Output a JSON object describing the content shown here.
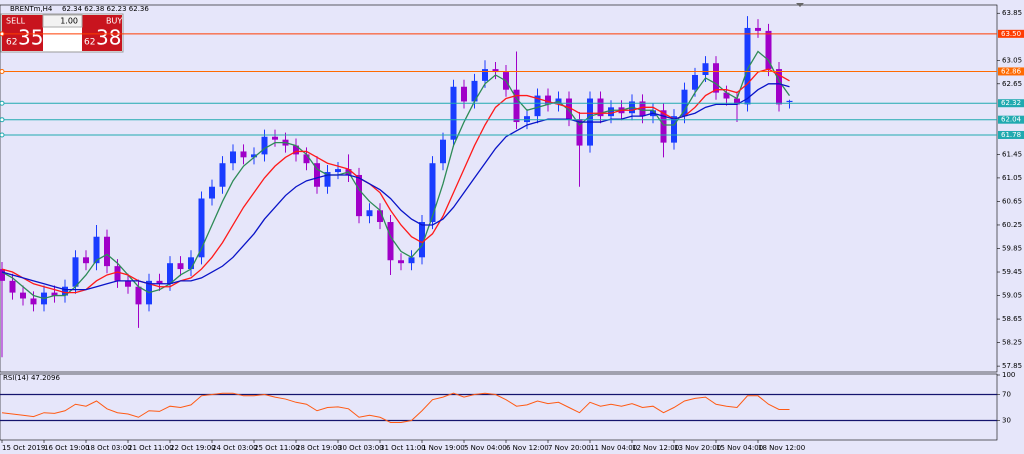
{
  "header": {
    "symbol": "BRENTm,H4",
    "ohlc": "62.34 62.38 62.23 62.36"
  },
  "trade_panel": {
    "sell": "SELL",
    "buy": "BUY",
    "lot": "1.00",
    "bid_prefix": "62",
    "bid_main": "35",
    "ask_prefix": "62",
    "ask_main": "38"
  },
  "chart_data": [
    {
      "type": "candlestick",
      "categories": [
        "15 Oct 2019",
        null,
        null,
        null,
        "16 Oct 19:00",
        null,
        null,
        null,
        "18 Oct 03:00",
        null,
        null,
        null,
        "21 Oct 11:00",
        null,
        null,
        null,
        "22 Oct 19:00",
        null,
        null,
        null,
        "24 Oct 03:00",
        null,
        null,
        null,
        "25 Oct 11:00",
        null,
        null,
        null,
        "28 Oct 19:00",
        null,
        null,
        null,
        "30 Oct 03:00",
        null,
        null,
        null,
        "31 Oct 11:00",
        null,
        null,
        null,
        "1 Nov 19:00",
        null,
        null,
        null,
        "5 Nov 04:00",
        null,
        null,
        null,
        "6 Nov 12:00",
        null,
        null,
        null,
        "7 Nov 20:00",
        null,
        null,
        null,
        "11 Nov 04:00",
        null,
        null,
        null,
        "12 Nov 12:00",
        null,
        null,
        null,
        "13 Nov 20:00",
        null,
        null,
        null,
        "15 Nov 04:00",
        null,
        null,
        null,
        "18 Nov 12:00",
        null,
        null,
        null
      ],
      "open": [
        59.5,
        59.3,
        59.1,
        59.0,
        58.9,
        59.1,
        59.05,
        59.2,
        59.7,
        59.6,
        60.05,
        59.55,
        59.3,
        59.2,
        58.9,
        59.3,
        59.25,
        59.6,
        59.5,
        59.7,
        60.7,
        60.9,
        61.3,
        61.5,
        61.4,
        61.45,
        61.75,
        61.7,
        61.6,
        61.45,
        61.3,
        60.9,
        61.15,
        61.2,
        61.1,
        60.4,
        60.5,
        60.3,
        59.65,
        59.6,
        59.7,
        60.3,
        61.3,
        61.7,
        62.6,
        62.35,
        62.7,
        62.9,
        62.85,
        62.55,
        62.0,
        62.1,
        62.45,
        62.3,
        62.4,
        62.05,
        61.6,
        62.4,
        62.1,
        62.25,
        62.15,
        62.35,
        62.1,
        62.2,
        61.65,
        62.1,
        62.55,
        62.8,
        63.0,
        62.5,
        62.4,
        62.3,
        63.6,
        63.55,
        62.9,
        62.34
      ],
      "high": [
        59.62,
        59.42,
        59.22,
        59.12,
        59.22,
        59.22,
        59.32,
        59.82,
        59.82,
        60.25,
        60.17,
        59.67,
        59.42,
        59.32,
        59.42,
        59.42,
        59.72,
        59.72,
        59.82,
        60.82,
        61.02,
        61.42,
        61.62,
        61.62,
        61.57,
        61.87,
        61.87,
        61.82,
        61.72,
        61.57,
        61.42,
        61.27,
        61.32,
        61.45,
        61.22,
        60.62,
        60.62,
        60.42,
        59.77,
        59.82,
        60.42,
        61.42,
        61.82,
        62.72,
        62.72,
        62.82,
        63.05,
        63.02,
        62.97,
        63.2,
        62.22,
        62.57,
        62.57,
        62.52,
        62.52,
        62.17,
        62.52,
        62.52,
        62.37,
        62.37,
        62.47,
        62.47,
        62.32,
        62.32,
        62.22,
        62.67,
        62.92,
        63.12,
        63.12,
        62.62,
        62.52,
        63.8,
        63.75,
        63.67,
        63.02,
        62.38
      ],
      "low": [
        58.0,
        58.98,
        58.88,
        58.78,
        58.78,
        58.93,
        58.93,
        59.08,
        59.48,
        59.48,
        59.43,
        59.18,
        59.08,
        58.5,
        58.78,
        59.13,
        59.13,
        59.38,
        59.38,
        59.58,
        60.58,
        60.78,
        61.18,
        61.28,
        61.28,
        61.33,
        61.58,
        61.48,
        61.33,
        61.18,
        60.78,
        60.78,
        61.03,
        60.98,
        60.28,
        60.28,
        60.18,
        59.4,
        59.48,
        59.48,
        59.58,
        60.18,
        61.18,
        61.58,
        62.23,
        62.23,
        62.58,
        62.73,
        62.43,
        61.88,
        61.88,
        61.98,
        62.18,
        62.18,
        61.93,
        60.9,
        61.48,
        61.98,
        61.98,
        62.03,
        62.03,
        61.98,
        61.98,
        61.4,
        61.53,
        61.98,
        62.43,
        62.68,
        62.38,
        62.28,
        62.0,
        62.18,
        63.43,
        62.78,
        62.18,
        62.23
      ],
      "close": [
        59.3,
        59.1,
        59.0,
        58.9,
        59.1,
        59.05,
        59.2,
        59.7,
        59.6,
        60.05,
        59.55,
        59.3,
        59.2,
        58.9,
        59.3,
        59.25,
        59.6,
        59.5,
        59.7,
        60.7,
        60.9,
        61.3,
        61.5,
        61.4,
        61.45,
        61.75,
        61.7,
        61.6,
        61.45,
        61.3,
        60.9,
        61.15,
        61.2,
        61.1,
        60.4,
        60.5,
        60.3,
        59.65,
        59.6,
        59.7,
        60.3,
        61.3,
        61.7,
        62.6,
        62.35,
        62.7,
        62.9,
        62.85,
        62.55,
        62.0,
        62.1,
        62.45,
        62.3,
        62.4,
        62.05,
        61.6,
        62.4,
        62.1,
        62.25,
        62.15,
        62.35,
        62.1,
        62.2,
        61.65,
        62.1,
        62.55,
        62.8,
        63.0,
        62.5,
        62.4,
        62.3,
        63.6,
        63.55,
        62.9,
        62.3,
        62.36
      ],
      "up_color": "#1a3cff",
      "down_color": "#a000c8",
      "overlays": [
        {
          "color": "#2e8b57",
          "values": [
            59.45,
            59.35,
            59.2,
            59.05,
            59.0,
            59.05,
            59.05,
            59.2,
            59.4,
            59.65,
            59.75,
            59.6,
            59.4,
            59.2,
            59.1,
            59.15,
            59.25,
            59.4,
            59.5,
            59.85,
            60.25,
            60.65,
            61.0,
            61.25,
            61.4,
            61.55,
            61.65,
            61.65,
            61.6,
            61.45,
            61.2,
            61.1,
            61.1,
            61.15,
            60.85,
            60.65,
            60.5,
            60.05,
            59.8,
            59.7,
            59.9,
            60.4,
            60.95,
            61.6,
            62.0,
            62.35,
            62.65,
            62.8,
            62.7,
            62.4,
            62.2,
            62.25,
            62.3,
            62.35,
            62.2,
            61.95,
            62.1,
            62.15,
            62.2,
            62.2,
            62.25,
            62.2,
            62.2,
            61.95,
            61.95,
            62.2,
            62.5,
            62.75,
            62.65,
            62.5,
            62.4,
            62.9,
            63.2,
            63.05,
            62.7,
            62.45
          ]
        },
        {
          "color": "#ff1a1a",
          "values": [
            59.5,
            59.45,
            59.35,
            59.25,
            59.2,
            59.15,
            59.1,
            59.1,
            59.15,
            59.3,
            59.4,
            59.45,
            59.4,
            59.3,
            59.25,
            59.2,
            59.2,
            59.3,
            59.35,
            59.5,
            59.7,
            59.95,
            60.25,
            60.55,
            60.8,
            61.05,
            61.25,
            61.4,
            61.5,
            61.5,
            61.4,
            61.3,
            61.25,
            61.2,
            61.05,
            60.95,
            60.8,
            60.5,
            60.25,
            60.05,
            59.95,
            60.1,
            60.4,
            60.8,
            61.2,
            61.6,
            61.95,
            62.25,
            62.4,
            62.45,
            62.45,
            62.4,
            62.35,
            62.3,
            62.25,
            62.15,
            62.15,
            62.15,
            62.15,
            62.2,
            62.2,
            62.25,
            62.25,
            62.15,
            62.05,
            62.1,
            62.25,
            62.45,
            62.55,
            62.55,
            62.5,
            62.65,
            62.85,
            62.9,
            62.8,
            62.7
          ]
        },
        {
          "color": "#0a14c8",
          "values": [
            59.45,
            59.4,
            59.35,
            59.3,
            59.25,
            59.2,
            59.15,
            59.15,
            59.15,
            59.2,
            59.25,
            59.3,
            59.3,
            59.3,
            59.25,
            59.25,
            59.25,
            59.3,
            59.3,
            59.35,
            59.45,
            59.55,
            59.7,
            59.9,
            60.1,
            60.35,
            60.55,
            60.75,
            60.9,
            61.0,
            61.05,
            61.1,
            61.1,
            61.1,
            61.05,
            60.95,
            60.85,
            60.7,
            60.5,
            60.35,
            60.25,
            60.25,
            60.35,
            60.55,
            60.8,
            61.05,
            61.3,
            61.55,
            61.75,
            61.85,
            61.95,
            62.0,
            62.05,
            62.05,
            62.05,
            62.0,
            62.0,
            62.0,
            62.05,
            62.05,
            62.1,
            62.1,
            62.15,
            62.1,
            62.05,
            62.1,
            62.15,
            62.25,
            62.3,
            62.3,
            62.3,
            62.4,
            62.55,
            62.65,
            62.65,
            62.6
          ]
        }
      ],
      "levels": [
        {
          "value": 63.5,
          "label": "63.50",
          "color": "#ff3c00"
        },
        {
          "value": 62.86,
          "label": "62.86",
          "color": "#ff6a00"
        },
        {
          "value": 62.32,
          "label": "62.32",
          "color": "#20aab0"
        },
        {
          "value": 62.04,
          "label": "62.04",
          "color": "#20aab0"
        },
        {
          "value": 61.78,
          "label": "61.78",
          "color": "#20aab0"
        }
      ],
      "ylim": [
        57.75,
        63.99
      ],
      "yticks": [
        57.85,
        58.25,
        58.65,
        59.05,
        59.45,
        59.85,
        60.25,
        60.65,
        61.05,
        61.45,
        62.65,
        63.05,
        63.85
      ]
    },
    {
      "type": "line",
      "title": "RSI(14) 47.2096",
      "color": "#ff5a14",
      "values": [
        42,
        40,
        38,
        36,
        42,
        41,
        45,
        55,
        52,
        60,
        48,
        42,
        40,
        35,
        45,
        44,
        52,
        50,
        54,
        68,
        70,
        72,
        72,
        68,
        68,
        70,
        66,
        63,
        58,
        55,
        45,
        50,
        51,
        48,
        35,
        38,
        35,
        27,
        27,
        30,
        45,
        62,
        66,
        72,
        66,
        70,
        72,
        70,
        62,
        52,
        54,
        60,
        56,
        58,
        50,
        42,
        58,
        52,
        55,
        52,
        56,
        50,
        52,
        42,
        50,
        60,
        64,
        66,
        55,
        52,
        50,
        68,
        68,
        55,
        47,
        47
      ],
      "ylim": [
        0,
        100
      ],
      "yticks": [
        30,
        70,
        100
      ],
      "levels": [
        70,
        30
      ],
      "level_color": "#14146e"
    }
  ]
}
